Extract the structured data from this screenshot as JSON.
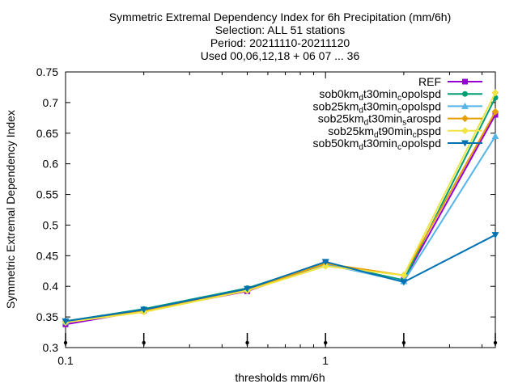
{
  "chart_data": {
    "type": "line",
    "title_lines": [
      "Symmetric Extremal Dependency Index  for 6h Precipitation (mm/6h)",
      "Selection: ALL     51 stations",
      "Period: 20211110-20211120",
      "Used 00,06,12,18 + 06 07 ... 36"
    ],
    "xlabel": "thresholds mm/6h",
    "ylabel": "Symmetric Extremal Dependency Index",
    "x_scale": "log",
    "xlim": [
      0.1,
      4.5
    ],
    "ylim": [
      0.3,
      0.75
    ],
    "x_ticks": [
      {
        "value": 0.1,
        "label": "0.1"
      },
      {
        "value": 1,
        "label": "1"
      }
    ],
    "y_ticks": [
      "0.3",
      "0.35",
      "0.4",
      "0.45",
      "0.5",
      "0.55",
      "0.6",
      "0.65",
      "0.7",
      "0.75"
    ],
    "threshold_markers": [
      0.1,
      0.2,
      0.5,
      1,
      2,
      4.5
    ],
    "legend_position": "top-right",
    "grid": false,
    "x": [
      0.1,
      0.2,
      0.5,
      1,
      2,
      4.5
    ],
    "series": [
      {
        "name": "REF",
        "label_parts": [
          [
            "REF",
            "n"
          ]
        ],
        "color": "#9400d3",
        "marker": "square",
        "dashed": false,
        "values": [
          0.338,
          0.36,
          0.392,
          0.437,
          0.41,
          0.68
        ]
      },
      {
        "name": "sob0km_dt30min_copolspd",
        "label_parts": [
          [
            "sob0km",
            "n"
          ],
          [
            "d",
            "sub"
          ],
          [
            "t30min",
            "n"
          ],
          [
            "c",
            "sub"
          ],
          [
            "opolspd",
            "n"
          ]
        ],
        "color": "#009e73",
        "marker": "circle",
        "dashed": false,
        "values": [
          0.343,
          0.363,
          0.397,
          0.438,
          0.41,
          0.708
        ]
      },
      {
        "name": "sob25km_dt30min_copolspd",
        "label_parts": [
          [
            "sob25km",
            "n"
          ],
          [
            "d",
            "sub"
          ],
          [
            "t30min",
            "n"
          ],
          [
            "c",
            "sub"
          ],
          [
            "opolspd",
            "n"
          ]
        ],
        "color": "#56b4e9",
        "marker": "triangle",
        "dashed": false,
        "values": [
          0.342,
          0.361,
          0.395,
          0.436,
          0.408,
          0.645
        ]
      },
      {
        "name": "sob25km_dt30min_sarospd",
        "label_parts": [
          [
            "sob25km",
            "n"
          ],
          [
            "d",
            "sub"
          ],
          [
            "t30min",
            "n"
          ],
          [
            "s",
            "sub"
          ],
          [
            "arospd",
            "n"
          ]
        ],
        "color": "#e69f00",
        "marker": "diamond",
        "dashed": false,
        "values": [
          0.342,
          0.36,
          0.394,
          0.437,
          0.418,
          0.685
        ]
      },
      {
        "name": "sob25km_dt90min_cpspd",
        "label_parts": [
          [
            "sob25km",
            "n"
          ],
          [
            "d",
            "sub"
          ],
          [
            "t90min",
            "n"
          ],
          [
            "c",
            "sub"
          ],
          [
            "pspd",
            "n"
          ]
        ],
        "color": "#f0e442",
        "marker": "diamond",
        "dashed": false,
        "values": [
          0.341,
          0.358,
          0.393,
          0.433,
          0.418,
          0.716
        ]
      },
      {
        "name": "sob50km_dt30min_copolspd",
        "label_parts": [
          [
            "sob50km",
            "n"
          ],
          [
            "d",
            "sub"
          ],
          [
            "t30min",
            "n"
          ],
          [
            "c",
            "sub"
          ],
          [
            "opolspd",
            "n"
          ]
        ],
        "color": "#0072b2",
        "marker": "triangle-down",
        "dashed": false,
        "values": [
          0.343,
          0.362,
          0.396,
          0.44,
          0.407,
          0.484
        ]
      }
    ]
  }
}
